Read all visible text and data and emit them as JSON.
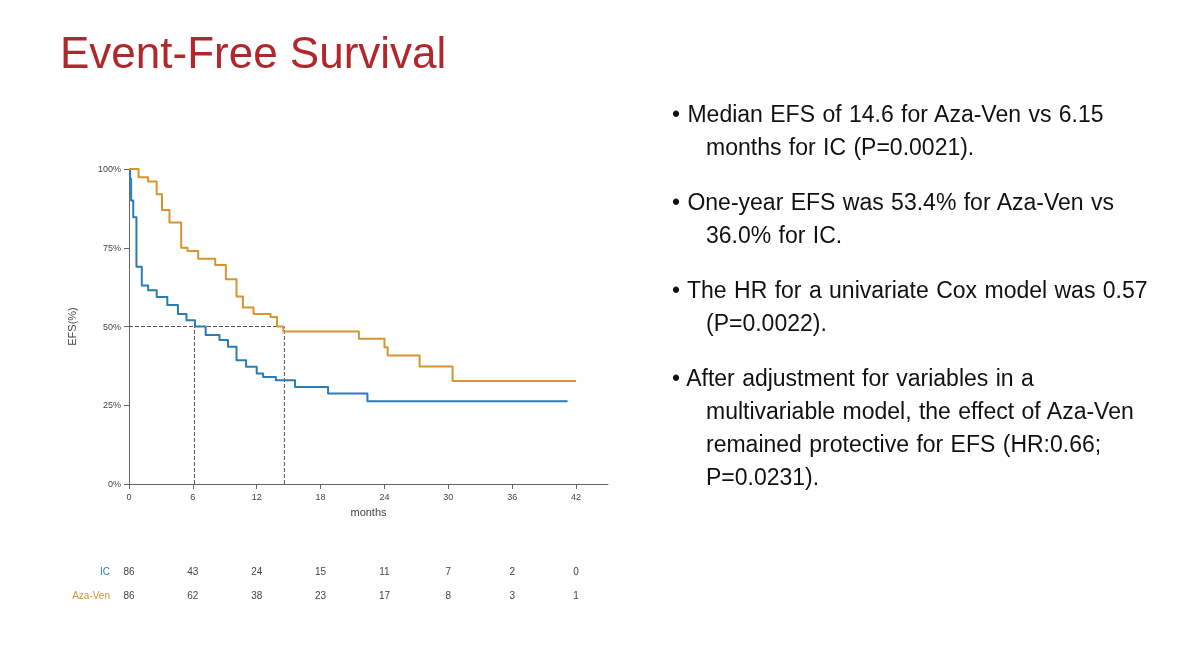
{
  "chart_data": {
    "type": "step",
    "title": "Event-Free Survival",
    "xlabel": "months",
    "ylabel": "EFS(%)",
    "series": [
      {
        "name": "IC",
        "color": "#2b7bb6",
        "x": [
          0,
          0.1,
          0.2,
          0.4,
          0.7,
          1.2,
          1.8,
          2.6,
          3.6,
          4.6,
          5.4,
          6.2,
          7.2,
          8.5,
          9.3,
          10.1,
          11,
          12,
          12.6,
          13.8,
          15.6,
          18.7,
          22.4,
          41.2
        ],
        "values": [
          100,
          96.8,
          90,
          84.7,
          69,
          63,
          61.5,
          59.4,
          56.8,
          54,
          52,
          50,
          47.3,
          45.7,
          43.6,
          39.3,
          37.2,
          35.1,
          34,
          32.9,
          30.8,
          28.7,
          26.3,
          26.3
        ]
      },
      {
        "name": "Aza-Ven",
        "color": "#d6952f",
        "x": [
          0,
          0.9,
          1.8,
          2.6,
          3.1,
          3.8,
          4.9,
          5.5,
          6.5,
          8.1,
          9.1,
          10.1,
          10.7,
          11.7,
          13.3,
          13.9,
          14.5,
          21.6,
          24,
          24.3,
          27.3,
          30.4,
          42
        ],
        "values": [
          100,
          97.4,
          96,
          92,
          87,
          83,
          75,
          74,
          71.5,
          69.5,
          65,
          59.5,
          56,
          54,
          53,
          50,
          48.4,
          46.1,
          43.4,
          40.8,
          37.3,
          32.7,
          32.7
        ]
      }
    ],
    "xlim": [
      0,
      45
    ],
    "xticks": [
      0,
      6,
      12,
      18,
      24,
      30,
      36,
      42
    ],
    "ylim": [
      0,
      100
    ],
    "yticks": [
      {
        "value": 0,
        "label": "0%"
      },
      {
        "value": 25,
        "label": "25%"
      },
      {
        "value": 50,
        "label": "50%"
      },
      {
        "value": 75,
        "label": "75%"
      },
      {
        "value": 100,
        "label": "100%"
      }
    ],
    "ref_lines": [
      {
        "axis": "y",
        "value": 50,
        "line_style": "dashed",
        "color": "#555555"
      },
      {
        "axis": "x",
        "value": 6.15,
        "line_style": "dashed",
        "color": "#555555"
      },
      {
        "axis": "x",
        "value": 14.6,
        "line_style": "dashed",
        "color": "#555555"
      }
    ],
    "annotations": [
      "86 43 24 15 11 7 2 0",
      "86 62 38 23 17 8 3 1",
      "• Median EFS of 14.6 for Aza-Ven vs 6.15 months for IC (P=0.0021).",
      "• One-year EFS was 53.4% for Aza-Ven vs 36.0% for IC.",
      "• The HR for a univariate Cox model was 0.57 (P=0.0022).",
      "• After adjustment for variables in a multivariable model, the effect of Aza-Ven remained protective for EFS (HR:0.66; P=0.0231)."
    ],
    "grid": false,
    "legend": false,
    "marker": "none",
    "line_style": "solid"
  }
}
